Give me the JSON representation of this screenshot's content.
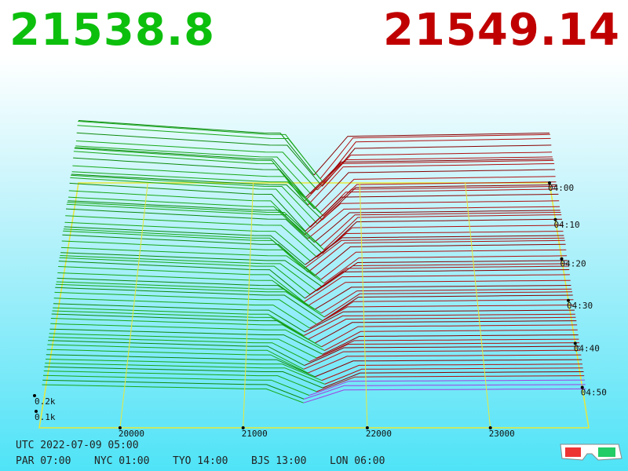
{
  "prices": {
    "bid": "21538.8",
    "ask": "21549.14"
  },
  "price_axis": [
    "20000",
    "21000",
    "22000",
    "23000"
  ],
  "time_axis": [
    "04:00",
    "04:10",
    "04:20",
    "04:30",
    "04:40",
    "04:50"
  ],
  "volume_axis": [
    "0.2k",
    "0.1k"
  ],
  "status": {
    "utc": "UTC 2022-07-09 05:00",
    "clocks": [
      "PAR 07:00",
      "NYC 01:00",
      "TYO 14:00",
      "BJS 13:00",
      "LON 06:00"
    ]
  }
}
